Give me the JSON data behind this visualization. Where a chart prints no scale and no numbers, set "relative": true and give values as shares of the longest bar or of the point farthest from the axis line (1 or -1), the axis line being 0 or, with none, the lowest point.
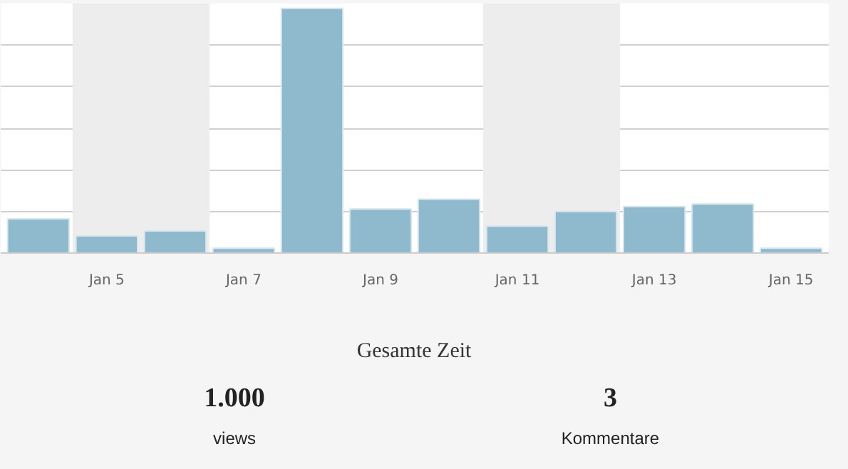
{
  "chart_data": [
    {
      "type": "bar",
      "relative": true,
      "grid": "y",
      "categories": [
        null,
        "Jan 5",
        null,
        "Jan 7",
        null,
        "Jan 9",
        null,
        "Jan 11",
        null,
        "Jan 13",
        null,
        "Jan 15"
      ],
      "values": [
        0.14,
        0.07,
        0.09,
        0.02,
        1,
        0.18,
        0.22,
        0.11,
        0.17,
        0.19,
        0.2,
        0.02
      ],
      "color": "#8fb9cc",
      "bands": [
        {
          "axis": "x",
          "from": "Jan 5",
          "to": "Jan 7",
          "color": "#ededed"
        },
        {
          "axis": "x",
          "from": "Jan 11",
          "to": "Jan 13",
          "color": "#ededed"
        }
      ]
    },
    {
      "type": "other",
      "title": "Gesamte Zeit",
      "annotations": [
        "1.000",
        "views",
        "3",
        "Kommentare"
      ]
    }
  ]
}
